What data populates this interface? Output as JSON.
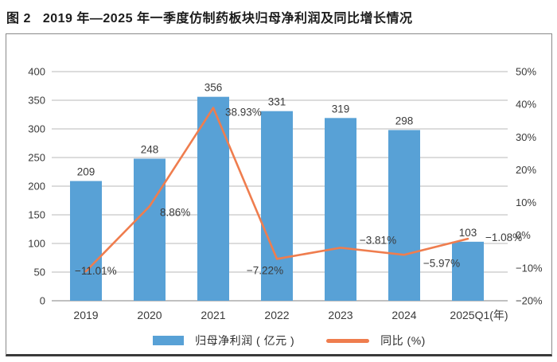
{
  "page": {
    "figure_label": "图 2",
    "title": "2019 年—2025 年一季度仿制药板块归母净利润及同比增长情况"
  },
  "colors": {
    "bar": "#58a1d6",
    "line": "#ef7d4e",
    "grid": "#c6c6c6",
    "axis": "#9b9b9b",
    "text": "#3a3a3a",
    "frame_border": "#8a8a8a",
    "frame_bottom": "#3a3a3a"
  },
  "chart_data": {
    "type": "combo",
    "categories": [
      "2019",
      "2020",
      "2021",
      "2022",
      "2023",
      "2024",
      "2025Q1(年)"
    ],
    "series": [
      {
        "name": "归母净利润 ( 亿元 )",
        "type": "bar",
        "axis": "left",
        "color": "#58a1d6",
        "values": [
          209,
          248,
          356,
          331,
          319,
          298,
          103
        ],
        "labels": [
          "209",
          "248",
          "356",
          "331",
          "319",
          "298",
          "103"
        ]
      },
      {
        "name": "同比 (%)",
        "type": "line",
        "axis": "right",
        "color": "#ef7d4e",
        "values": [
          -11.01,
          8.86,
          38.93,
          -7.22,
          -3.81,
          -5.97,
          -1.08
        ],
        "labels": [
          "−11.01%",
          "8.86%",
          "38.93%",
          "−7.22%",
          "−3.81%",
          "−5.97%",
          "−1.08%"
        ]
      }
    ],
    "left_axis": {
      "min": 0,
      "max": 400,
      "tick_step": 50,
      "ticks": [
        "0",
        "50",
        "100",
        "150",
        "200",
        "250",
        "300",
        "350",
        "400"
      ]
    },
    "right_axis": {
      "min": -20,
      "max": 50,
      "tick_step": 10,
      "ticks": [
        "−20%",
        "−10%",
        "0%",
        "10%",
        "20%",
        "30%",
        "40%",
        "50%"
      ]
    },
    "grid": true,
    "legend_position": "bottom"
  },
  "legend": {
    "bar_label": "归母净利润 ( 亿元 )",
    "line_label": "同比 (%)"
  }
}
